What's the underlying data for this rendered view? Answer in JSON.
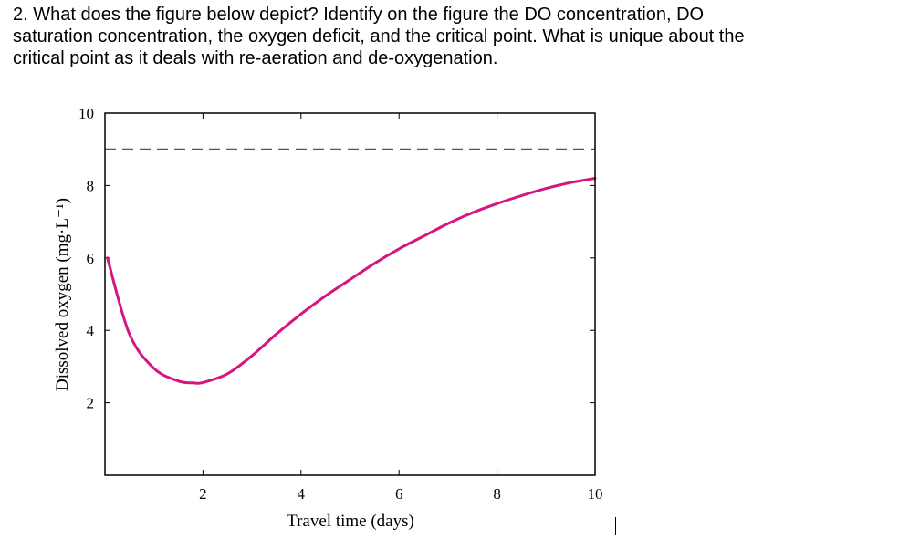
{
  "question": {
    "lines": [
      "2. What does the figure below depict?  Identify on the figure the DO concentration, DO",
      "saturation concentration, the oxygen deficit, and the critical point.  What is unique about the",
      "critical point as it deals with re-aeration and de-oxygenation."
    ]
  },
  "colors": {
    "curve": "#d6157f",
    "axis": "#000000",
    "dashed": "#555555"
  },
  "chart_data": {
    "type": "line",
    "title": "",
    "xlabel": "Travel time (days)",
    "ylabel": "Dissolved oxygen (mg·L⁻¹)",
    "xlim": [
      0,
      10
    ],
    "ylim": [
      0,
      10
    ],
    "xticks": [
      2,
      4,
      6,
      8,
      10
    ],
    "xtick_labels": [
      "2",
      "4",
      "6",
      "8",
      "10"
    ],
    "yticks": [
      2,
      4,
      6,
      8,
      10
    ],
    "ytick_labels": [
      "2",
      "4",
      "6",
      "8",
      "10"
    ],
    "grid": false,
    "series": [
      {
        "name": "DO concentration",
        "style": "solid",
        "x": [
          0.05,
          0.5,
          1.0,
          1.5,
          1.8,
          2.0,
          2.5,
          3.0,
          3.5,
          4.0,
          4.5,
          5.0,
          5.5,
          6.0,
          6.5,
          7.0,
          7.5,
          8.0,
          8.5,
          9.0,
          9.5,
          10.0
        ],
        "y": [
          6.0,
          3.9,
          2.95,
          2.6,
          2.55,
          2.56,
          2.8,
          3.3,
          3.9,
          4.45,
          4.95,
          5.4,
          5.85,
          6.25,
          6.6,
          6.95,
          7.25,
          7.5,
          7.72,
          7.92,
          8.08,
          8.2
        ]
      },
      {
        "name": "DO saturation",
        "style": "dashed",
        "x": [
          0,
          10
        ],
        "y": [
          9.0,
          9.0
        ]
      }
    ]
  }
}
